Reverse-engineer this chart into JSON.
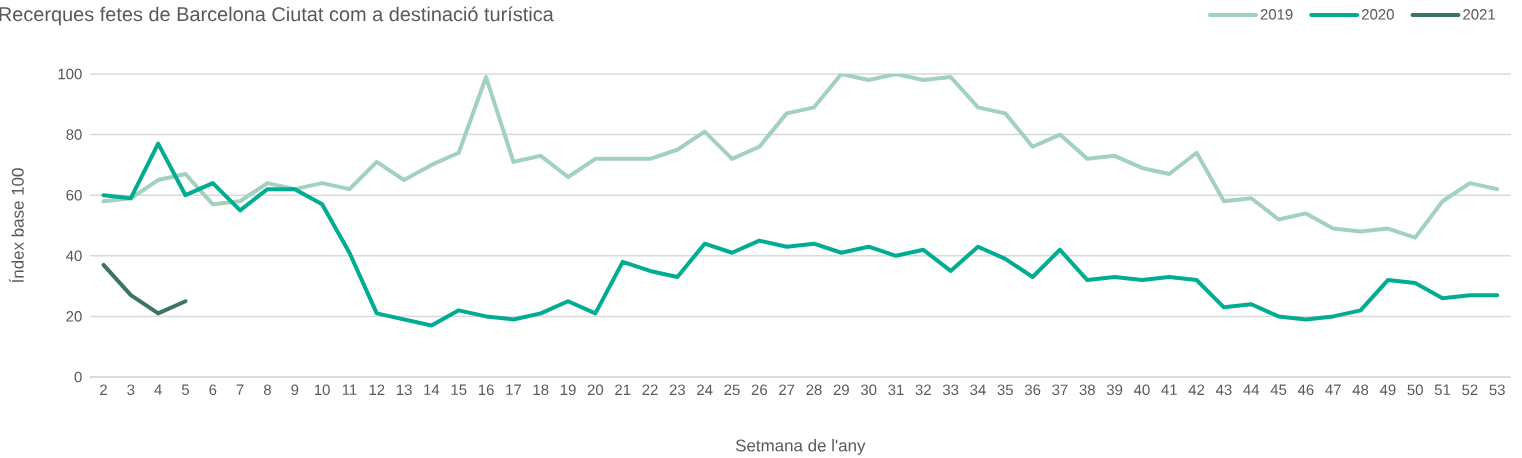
{
  "chart_data": {
    "type": "line",
    "title": "Recerques fetes de Barcelona Ciutat com a destinació turística",
    "xlabel": "Setmana de l'any",
    "ylabel": "Índex base 100",
    "categories": [
      "2",
      "3",
      "4",
      "5",
      "6",
      "7",
      "8",
      "9",
      "10",
      "11",
      "12",
      "13",
      "14",
      "15",
      "16",
      "17",
      "18",
      "19",
      "20",
      "21",
      "22",
      "23",
      "24",
      "25",
      "26",
      "27",
      "28",
      "29",
      "30",
      "31",
      "32",
      "33",
      "34",
      "35",
      "36",
      "37",
      "38",
      "39",
      "40",
      "41",
      "42",
      "43",
      "44",
      "45",
      "46",
      "47",
      "48",
      "49",
      "50",
      "51",
      "52",
      "53"
    ],
    "series": [
      {
        "name": "2019",
        "color": "#a3d1bf",
        "values": [
          58,
          59,
          65,
          67,
          57,
          58,
          64,
          62,
          64,
          62,
          71,
          65,
          70,
          74,
          99,
          71,
          73,
          66,
          72,
          72,
          72,
          75,
          81,
          72,
          76,
          87,
          89,
          100,
          98,
          100,
          98,
          99,
          89,
          87,
          76,
          80,
          72,
          73,
          69,
          67,
          74,
          58,
          59,
          52,
          54,
          49,
          48,
          49,
          46,
          58,
          64,
          62
        ]
      },
      {
        "name": "2020",
        "color": "#00ad93",
        "values": [
          60,
          59,
          77,
          60,
          64,
          55,
          62,
          62,
          57,
          41,
          21,
          19,
          17,
          22,
          20,
          19,
          21,
          25,
          21,
          38,
          35,
          33,
          44,
          41,
          45,
          43,
          44,
          41,
          43,
          40,
          42,
          35,
          43,
          39,
          33,
          42,
          32,
          33,
          32,
          33,
          32,
          23,
          24,
          20,
          19,
          20,
          22,
          32,
          31,
          26,
          27,
          27
        ]
      },
      {
        "name": "2021",
        "color": "#3b7460",
        "values": [
          37,
          27,
          21,
          25,
          null,
          null,
          null,
          null,
          null,
          null,
          null,
          null,
          null,
          null,
          null,
          null,
          null,
          null,
          null,
          null,
          null,
          null,
          null,
          null,
          null,
          null,
          null,
          null,
          null,
          null,
          null,
          null,
          null,
          null,
          null,
          null,
          null,
          null,
          null,
          null,
          null,
          null,
          null,
          null,
          null,
          null,
          null,
          null,
          null,
          null,
          null,
          null
        ]
      }
    ],
    "ylim": [
      0,
      100
    ],
    "yticks": [
      0,
      20,
      40,
      60,
      80,
      100
    ],
    "grid": "y",
    "legend": "top right"
  }
}
